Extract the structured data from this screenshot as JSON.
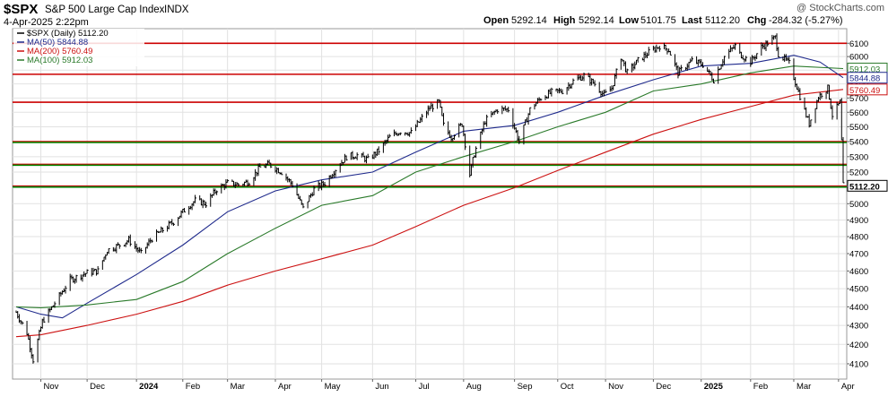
{
  "header": {
    "symbol": "$SPX",
    "name": "S&P 500 Large Cap Index",
    "exchange": "INDX",
    "date": "4-Apr-2025 2:22pm",
    "watermark": "@ StockCharts.com",
    "quote": {
      "open_label": "Open",
      "open": "5292.14",
      "high_label": "High",
      "high": "5292.14",
      "low_label": "Low",
      "low": "5101.75",
      "last_label": "Last",
      "last": "5112.20",
      "chg_label": "Chg",
      "chg": "-284.32 (-5.27%)"
    }
  },
  "legend": [
    {
      "label": "$SPX (Daily) 5112.20",
      "color": "#000000"
    },
    {
      "label": "MA(50) 5844.88",
      "color": "#1f2a8c"
    },
    {
      "label": "MA(200) 5760.49",
      "color": "#cc1111"
    },
    {
      "label": "MA(100) 5912.03",
      "color": "#2a7a2a"
    }
  ],
  "chart_data": {
    "type": "line",
    "ylim": [
      4050,
      6170
    ],
    "y_scale": "log",
    "yticks": [
      4100,
      4200,
      4300,
      4400,
      4500,
      4600,
      4700,
      4800,
      4900,
      5000,
      5100,
      5200,
      5300,
      5400,
      5500,
      5600,
      5700,
      5800,
      5900,
      6000,
      6100
    ],
    "xticks": [
      {
        "label": "Nov",
        "date": "2023-11-01"
      },
      {
        "label": "Dec",
        "date": "2023-12-01"
      },
      {
        "label": "2024",
        "date": "2024-01-02",
        "bold": true
      },
      {
        "label": "Feb",
        "date": "2024-02-01"
      },
      {
        "label": "Mar",
        "date": "2024-03-01"
      },
      {
        "label": "Apr",
        "date": "2024-04-01"
      },
      {
        "label": "May",
        "date": "2024-05-01"
      },
      {
        "label": "Jun",
        "date": "2024-06-03"
      },
      {
        "label": "Jul",
        "date": "2024-07-01"
      },
      {
        "label": "Aug",
        "date": "2024-08-01"
      },
      {
        "label": "Sep",
        "date": "2024-09-03"
      },
      {
        "label": "Oct",
        "date": "2024-10-01"
      },
      {
        "label": "Nov",
        "date": "2024-11-01"
      },
      {
        "label": "Dec",
        "date": "2024-12-02"
      },
      {
        "label": "2025",
        "date": "2025-01-02",
        "bold": true
      },
      {
        "label": "Feb",
        "date": "2025-02-03"
      },
      {
        "label": "Mar",
        "date": "2025-03-03"
      },
      {
        "label": "Apr",
        "date": "2025-04-01"
      }
    ],
    "price": {
      "name": "$SPX (Daily)",
      "color": "#000000",
      "x": [
        "2023-10-16",
        "2023-10-23",
        "2023-10-27",
        "2023-11-02",
        "2023-11-10",
        "2023-11-20",
        "2023-12-01",
        "2023-12-08",
        "2023-12-14",
        "2023-12-22",
        "2023-12-28",
        "2024-01-05",
        "2024-01-12",
        "2024-01-19",
        "2024-01-26",
        "2024-02-02",
        "2024-02-09",
        "2024-02-16",
        "2024-02-23",
        "2024-03-01",
        "2024-03-08",
        "2024-03-15",
        "2024-03-22",
        "2024-03-28",
        "2024-04-05",
        "2024-04-12",
        "2024-04-19",
        "2024-04-26",
        "2024-05-03",
        "2024-05-10",
        "2024-05-17",
        "2024-05-24",
        "2024-05-31",
        "2024-06-07",
        "2024-06-14",
        "2024-06-21",
        "2024-06-28",
        "2024-07-05",
        "2024-07-10",
        "2024-07-16",
        "2024-07-19",
        "2024-07-24",
        "2024-07-31",
        "2024-08-05",
        "2024-08-08",
        "2024-08-15",
        "2024-08-23",
        "2024-08-30",
        "2024-09-06",
        "2024-09-13",
        "2024-09-20",
        "2024-09-27",
        "2024-10-04",
        "2024-10-11",
        "2024-10-18",
        "2024-10-25",
        "2024-10-31",
        "2024-11-05",
        "2024-11-11",
        "2024-11-15",
        "2024-11-22",
        "2024-11-29",
        "2024-12-06",
        "2024-12-12",
        "2024-12-18",
        "2024-12-27",
        "2025-01-03",
        "2025-01-10",
        "2025-01-17",
        "2025-01-24",
        "2025-01-27",
        "2025-02-03",
        "2025-02-10",
        "2025-02-19",
        "2025-02-21",
        "2025-02-28",
        "2025-03-05",
        "2025-03-10",
        "2025-03-13",
        "2025-03-19",
        "2025-03-25",
        "2025-03-28",
        "2025-04-02",
        "2025-04-03",
        "2025-04-04"
      ],
      "y": [
        4370,
        4260,
        4120,
        4320,
        4420,
        4550,
        4590,
        4600,
        4720,
        4750,
        4780,
        4700,
        4790,
        4840,
        4890,
        4960,
        5020,
        5000,
        5090,
        5130,
        5120,
        5140,
        5230,
        5250,
        5200,
        5120,
        4970,
        5090,
        5130,
        5220,
        5300,
        5310,
        5280,
        5340,
        5430,
        5470,
        5460,
        5560,
        5630,
        5670,
        5510,
        5430,
        5520,
        5185,
        5320,
        5540,
        5620,
        5620,
        5400,
        5620,
        5700,
        5740,
        5750,
        5820,
        5860,
        5800,
        5720,
        5770,
        6000,
        5880,
        5970,
        6030,
        6080,
        6050,
        5880,
        5970,
        5940,
        5830,
        6000,
        6080,
        6020,
        5960,
        6070,
        6144,
        6020,
        5950,
        5780,
        5610,
        5520,
        5710,
        5770,
        5580,
        5670,
        5400,
        5112.2
      ]
    },
    "series": [
      {
        "name": "MA(50)",
        "color": "#1f2a8c",
        "last": 5844.88,
        "x": [
          "2023-10-16",
          "2023-11-01",
          "2023-11-15",
          "2023-12-01",
          "2024-01-02",
          "2024-02-01",
          "2024-03-01",
          "2024-04-01",
          "2024-05-01",
          "2024-06-03",
          "2024-07-01",
          "2024-08-01",
          "2024-09-03",
          "2024-10-01",
          "2024-11-01",
          "2024-12-02",
          "2025-01-02",
          "2025-02-03",
          "2025-03-03",
          "2025-03-20",
          "2025-04-04"
        ],
        "y": [
          4400,
          4360,
          4340,
          4420,
          4580,
          4750,
          4950,
          5080,
          5150,
          5200,
          5330,
          5470,
          5510,
          5600,
          5720,
          5830,
          5930,
          5950,
          6010,
          5960,
          5844.88
        ]
      },
      {
        "name": "MA(200)",
        "color": "#cc1111",
        "last": 5760.49,
        "x": [
          "2023-10-16",
          "2023-11-01",
          "2023-12-01",
          "2024-01-02",
          "2024-02-01",
          "2024-03-01",
          "2024-04-01",
          "2024-05-01",
          "2024-06-03",
          "2024-07-01",
          "2024-08-01",
          "2024-09-03",
          "2024-10-01",
          "2024-11-01",
          "2024-12-02",
          "2025-01-02",
          "2025-02-03",
          "2025-03-03",
          "2025-04-04"
        ],
        "y": [
          4240,
          4250,
          4300,
          4360,
          4430,
          4520,
          4600,
          4670,
          4750,
          4860,
          4990,
          5100,
          5210,
          5330,
          5450,
          5550,
          5640,
          5720,
          5760.49
        ]
      },
      {
        "name": "MA(100)",
        "color": "#2a7a2a",
        "last": 5912.03,
        "x": [
          "2023-10-16",
          "2023-11-01",
          "2023-12-01",
          "2024-01-02",
          "2024-02-01",
          "2024-03-01",
          "2024-04-01",
          "2024-05-01",
          "2024-06-03",
          "2024-07-01",
          "2024-08-01",
          "2024-09-03",
          "2024-10-01",
          "2024-11-01",
          "2024-12-02",
          "2025-01-02",
          "2025-02-03",
          "2025-03-03",
          "2025-04-04"
        ],
        "y": [
          4400,
          4395,
          4410,
          4440,
          4540,
          4700,
          4850,
          4990,
          5050,
          5200,
          5300,
          5400,
          5500,
          5600,
          5750,
          5800,
          5880,
          5930,
          5912.03
        ]
      }
    ],
    "hlines": [
      {
        "value": 6100,
        "color": "#cc0000"
      },
      {
        "value": 5870,
        "color": "#cc0000"
      },
      {
        "value": 5670,
        "color": "#cc0000"
      },
      {
        "value": 5400,
        "color": "#cc0000"
      },
      {
        "value": 5400,
        "color": "#008800"
      },
      {
        "value": 5250,
        "color": "#cc0000"
      },
      {
        "value": 5250,
        "color": "#008800"
      },
      {
        "value": 5110,
        "color": "#cc0000"
      },
      {
        "value": 5110,
        "color": "#008800"
      }
    ],
    "price_labels": [
      {
        "value": "5912.03",
        "num": 5912.03,
        "color": "#2a7a2a"
      },
      {
        "value": "5844.88",
        "num": 5844.88,
        "color": "#1f2a8c"
      },
      {
        "value": "5760.49",
        "num": 5760.49,
        "color": "#cc1111"
      },
      {
        "value": "5112.20",
        "num": 5112.2,
        "color": "#000000",
        "bold": true
      }
    ]
  }
}
